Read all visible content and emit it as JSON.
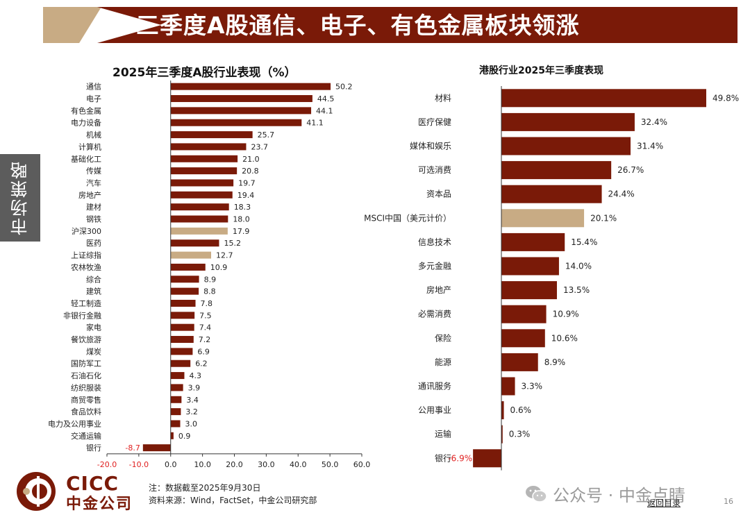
{
  "header": {
    "title": "三季度A股通信、电子、有色金属板块领涨"
  },
  "side_tab": {
    "label": "市场策略"
  },
  "colors": {
    "bar": "#7a1a08",
    "highlight": "#c8ab84",
    "negative_label": "#e02020"
  },
  "chart_data": [
    {
      "type": "bar",
      "orientation": "horizontal",
      "title": "2025年三季度A股行业表现（%）",
      "categories": [
        "通信",
        "电子",
        "有色金属",
        "电力设备",
        "机械",
        "计算机",
        "基础化工",
        "传媒",
        "汽车",
        "房地产",
        "建材",
        "钢铁",
        "沪深300",
        "医药",
        "上证综指",
        "农林牧渔",
        "综合",
        "建筑",
        "轻工制造",
        "非银行金融",
        "家电",
        "餐饮旅游",
        "煤炭",
        "国防军工",
        "石油石化",
        "纺织服装",
        "商贸零售",
        "食品饮料",
        "电力及公用事业",
        "交通运输",
        "银行"
      ],
      "values": [
        50.2,
        44.5,
        44.1,
        41.1,
        25.7,
        23.7,
        21.0,
        20.8,
        19.7,
        19.4,
        18.3,
        18.0,
        17.9,
        15.2,
        12.7,
        10.9,
        8.9,
        8.8,
        7.8,
        7.5,
        7.4,
        7.2,
        6.9,
        6.2,
        4.3,
        3.9,
        3.4,
        3.2,
        3.0,
        0.9,
        -8.7
      ],
      "value_labels": [
        "50.2",
        "44.5",
        "44.1",
        "41.1",
        "25.7",
        "23.7",
        "21.0",
        "20.8",
        "19.7",
        "19.4",
        "18.3",
        "18.0",
        "17.9",
        "15.2",
        "12.7",
        "10.9",
        "8.9",
        "8.8",
        "7.8",
        "7.5",
        "7.4",
        "7.2",
        "6.9",
        "6.2",
        "4.3",
        "3.9",
        "3.4",
        "3.2",
        "3.0",
        "0.9",
        "-8.7"
      ],
      "highlighted": [
        "沪深300",
        "上证综指"
      ],
      "xlim": [
        -20,
        60
      ],
      "xticks": [
        -20,
        -10,
        0,
        10,
        20,
        30,
        40,
        50,
        60
      ],
      "xtick_labels": [
        "-20.0",
        "-10.0",
        "0.0",
        "10.0",
        "20.0",
        "30.0",
        "40.0",
        "50.0",
        "60.0"
      ],
      "grid": false
    },
    {
      "type": "bar",
      "orientation": "horizontal",
      "title": "港股行业2025年三季度表现",
      "categories": [
        "材料",
        "医疗保健",
        "媒体和娱乐",
        "可选消费",
        "资本品",
        "MSCI中国（美元计价）",
        "信息技术",
        "多元金融",
        "房地产",
        "必需消费",
        "保险",
        "能源",
        "通讯服务",
        "公用事业",
        "运输",
        "银行"
      ],
      "values": [
        49.8,
        32.4,
        31.4,
        26.7,
        24.4,
        20.1,
        15.4,
        14.0,
        13.5,
        10.9,
        10.6,
        8.9,
        3.3,
        0.6,
        0.3,
        -6.9
      ],
      "value_labels": [
        "49.8%",
        "32.4%",
        "31.4%",
        "26.7%",
        "24.4%",
        "20.1%",
        "15.4%",
        "14.0%",
        "13.5%",
        "10.9%",
        "10.6%",
        "8.9%",
        "3.3%",
        "0.6%",
        "0.3%",
        "-6.9%"
      ],
      "highlighted": [
        "MSCI中国（美元计价）"
      ],
      "grid": false
    }
  ],
  "footer": {
    "note": "注：数据截至2025年9月30日",
    "source": "资料来源：Wind，FactSet，中金公司研究部",
    "logo_en": "CICC",
    "logo_cn": "中金公司",
    "watermark": "公众号 · 中金点睛",
    "back_link": "返回目录",
    "page_number": "16"
  }
}
